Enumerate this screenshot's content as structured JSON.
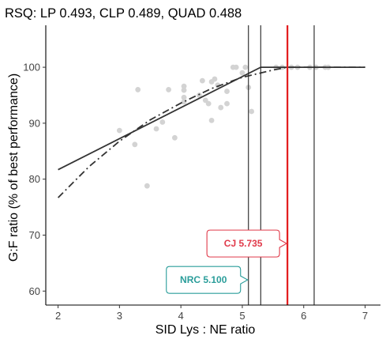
{
  "chart_data": {
    "type": "scatter",
    "title": "RSQ: LP 0.493, CLP 0.489, QUAD 0.488",
    "xlabel": "SID Lys : NE ratio",
    "ylabel": "G:F ratio (% of best performance)",
    "xlim": [
      1.8,
      7.25
    ],
    "ylim": [
      57.5,
      107.5
    ],
    "x_ticks": [
      2,
      3,
      4,
      5,
      6,
      7
    ],
    "y_ticks": [
      60,
      70,
      80,
      90,
      100
    ],
    "grid": false,
    "point_color": "#d3d3d3",
    "points": [
      {
        "x": 3.0,
        "y": 88.7
      },
      {
        "x": 3.25,
        "y": 86.2
      },
      {
        "x": 3.3,
        "y": 96.0
      },
      {
        "x": 3.45,
        "y": 78.8
      },
      {
        "x": 3.6,
        "y": 89.0
      },
      {
        "x": 3.7,
        "y": 90.2
      },
      {
        "x": 3.8,
        "y": 96.0
      },
      {
        "x": 3.9,
        "y": 87.4
      },
      {
        "x": 4.05,
        "y": 96.6
      },
      {
        "x": 4.05,
        "y": 95.9
      },
      {
        "x": 4.05,
        "y": 94.6
      },
      {
        "x": 4.05,
        "y": 93.8
      },
      {
        "x": 4.3,
        "y": 95.0
      },
      {
        "x": 4.35,
        "y": 97.6
      },
      {
        "x": 4.4,
        "y": 94.1
      },
      {
        "x": 4.45,
        "y": 93.5
      },
      {
        "x": 4.5,
        "y": 90.5
      },
      {
        "x": 4.5,
        "y": 97.4
      },
      {
        "x": 4.55,
        "y": 97.9
      },
      {
        "x": 4.6,
        "y": 96.8
      },
      {
        "x": 4.65,
        "y": 92.8
      },
      {
        "x": 4.75,
        "y": 95.7
      },
      {
        "x": 4.75,
        "y": 93.5
      },
      {
        "x": 4.85,
        "y": 100.0
      },
      {
        "x": 4.9,
        "y": 100.0
      },
      {
        "x": 5.0,
        "y": 99.0
      },
      {
        "x": 5.05,
        "y": 100.0
      },
      {
        "x": 5.1,
        "y": 96.4
      },
      {
        "x": 5.15,
        "y": 92.1
      },
      {
        "x": 5.55,
        "y": 100.0
      },
      {
        "x": 5.65,
        "y": 100.0
      },
      {
        "x": 5.8,
        "y": 100.0
      },
      {
        "x": 5.9,
        "y": 100.0
      },
      {
        "x": 6.1,
        "y": 100.0
      },
      {
        "x": 6.2,
        "y": 100.0
      },
      {
        "x": 6.35,
        "y": 100.0
      },
      {
        "x": 6.4,
        "y": 100.0
      }
    ],
    "series": [
      {
        "type": "line",
        "style": "solid",
        "color": "#333333",
        "x": [
          2.0,
          5.3,
          7.0
        ],
        "y": [
          81.7,
          100.0,
          100.0
        ]
      },
      {
        "type": "line",
        "style": "dashdot",
        "color": "#333333",
        "x": [
          2.0,
          2.5,
          3.0,
          3.5,
          4.0,
          4.5,
          5.0,
          5.5,
          5.735,
          6.0,
          6.5,
          7.0
        ],
        "y": [
          76.7,
          82.2,
          86.8,
          90.6,
          93.6,
          96.2,
          98.2,
          99.5,
          100.0,
          100.0,
          100.0,
          100.0
        ]
      }
    ],
    "vlines": [
      {
        "x": 5.1,
        "color": "#222222",
        "emphasis": false
      },
      {
        "x": 5.3,
        "color": "#222222",
        "emphasis": false
      },
      {
        "x": 5.735,
        "color": "#e31a1c",
        "emphasis": true
      },
      {
        "x": 6.17,
        "color": "#222222",
        "emphasis": false
      }
    ],
    "annotations": [
      {
        "text": "CJ 5.735",
        "x": 5.735,
        "y": 68.5,
        "color": "#e03a4a"
      },
      {
        "text": "NRC 5.100",
        "x": 5.1,
        "y": 62.0,
        "color": "#2a9d9a"
      }
    ]
  }
}
